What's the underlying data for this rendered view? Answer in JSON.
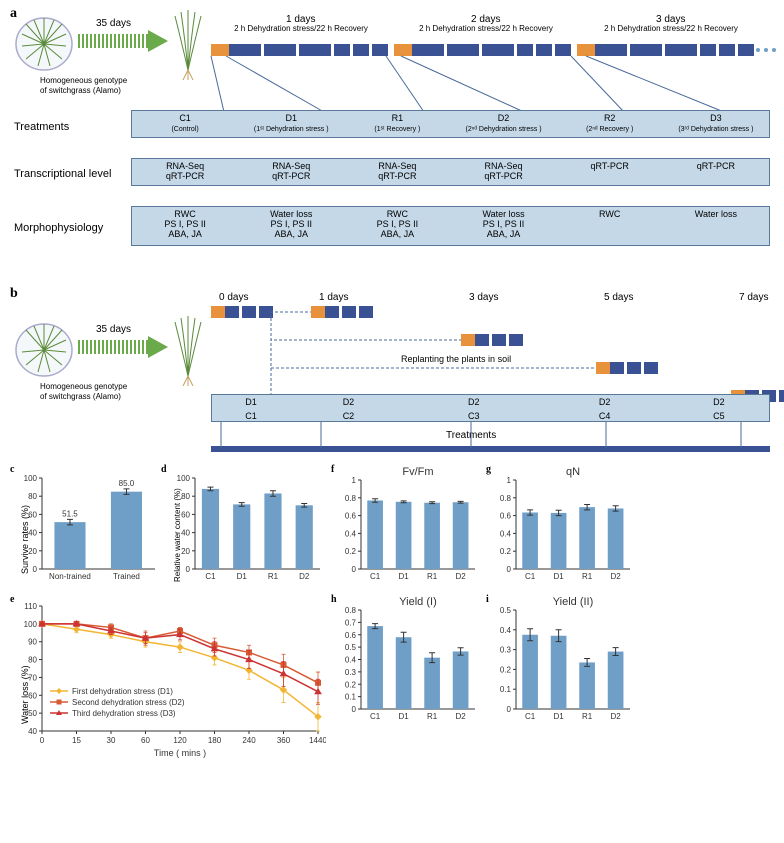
{
  "panelA": {
    "label": "a",
    "arrow_label": "35 days",
    "caption_l1": "Homogeneous genotype",
    "caption_l2": "of switchgrass (Alamo)",
    "days": [
      "1 days",
      "2 days",
      "3 days"
    ],
    "sublabel": "2 h Dehydration stress/22 h Recovery",
    "rows": {
      "treatments": {
        "label": "Treatments",
        "cells": [
          {
            "t": "C1",
            "s": "(Control)"
          },
          {
            "t": "D1",
            "s": "(1ˢᵗ Dehydration stress )"
          },
          {
            "t": "R1",
            "s": "(1ˢᵗ Recovery )"
          },
          {
            "t": "D2",
            "s": "(2ⁿᵈ Dehydration stress )"
          },
          {
            "t": "R2",
            "s": "(2ⁿᵈ Recovery )"
          },
          {
            "t": "D3",
            "s": "(3ʳᵈ Dehydration stress )"
          }
        ]
      },
      "transcriptional": {
        "label": "Transcriptional level",
        "cells": [
          [
            "RNA-Seq",
            "qRT-PCR"
          ],
          [
            "RNA-Seq",
            "qRT-PCR"
          ],
          [
            "RNA-Seq",
            "qRT-PCR"
          ],
          [
            "RNA-Seq",
            "qRT-PCR"
          ],
          [
            "",
            "qRT-PCR"
          ],
          [
            "",
            "qRT-PCR"
          ]
        ]
      },
      "morpho": {
        "label": "Morphophysiology",
        "cells": [
          [
            "RWC",
            "PS I, PS II",
            "ABA, JA"
          ],
          [
            "Water loss",
            "PS I, PS II",
            "ABA, JA"
          ],
          [
            "RWC",
            "PS I, PS II",
            "ABA, JA"
          ],
          [
            "Water loss",
            "PS I, PS II",
            "ABA, JA"
          ],
          [
            "RWC",
            "",
            ""
          ],
          [
            "Water loss",
            "",
            ""
          ]
        ]
      }
    }
  },
  "panelB": {
    "label": "b",
    "arrow_label": "35 days",
    "caption_l1": "Homogeneous genotype",
    "caption_l2": "of switchgrass (Alamo)",
    "days": [
      "0 days",
      "1 days",
      "3 days",
      "5 days",
      "7 days"
    ],
    "replant": "Replanting the plants in soil",
    "row1": [
      "D1",
      "D2",
      "D2",
      "D2",
      "D2"
    ],
    "row2": [
      "C1",
      "C2",
      "C3",
      "C4",
      "C5"
    ],
    "tlabel": "Treatments"
  },
  "c": {
    "label": "c",
    "ylabel": "Survive rates (%)",
    "cats": [
      "Non-trained",
      "Trained"
    ],
    "vals": [
      51.5,
      85.0
    ],
    "errs": [
      3,
      3
    ],
    "showVals": [
      "51.5",
      "85.0"
    ],
    "ymax": 100,
    "yticks": [
      0,
      20,
      40,
      60,
      80,
      100
    ]
  },
  "d": {
    "label": "d",
    "ylabel": "Relative water content (%)",
    "cats": [
      "C1",
      "D1",
      "R1",
      "D2"
    ],
    "vals": [
      88,
      71,
      83,
      70
    ],
    "errs": [
      2,
      2,
      3,
      2
    ],
    "ymax": 100,
    "yticks": [
      0,
      20,
      40,
      60,
      80,
      100
    ]
  },
  "f": {
    "label": "f",
    "title": "Fv/Fm",
    "cats": [
      "C1",
      "D1",
      "R1",
      "D2"
    ],
    "vals": [
      0.77,
      0.755,
      0.745,
      0.75
    ],
    "errs": [
      0.02,
      0.01,
      0.01,
      0.01
    ],
    "ymax": 1,
    "yticks": [
      0,
      0.2,
      0.4,
      0.6,
      0.8,
      1
    ]
  },
  "g": {
    "label": "g",
    "title": "qN",
    "cats": [
      "C1",
      "D1",
      "R1",
      "D2"
    ],
    "vals": [
      0.635,
      0.63,
      0.695,
      0.68
    ],
    "errs": [
      0.03,
      0.03,
      0.03,
      0.03
    ],
    "ymax": 1,
    "yticks": [
      0,
      0.2,
      0.4,
      0.6,
      0.8,
      1
    ]
  },
  "h": {
    "label": "h",
    "title": "Yield (I)",
    "cats": [
      "C1",
      "D1",
      "R1",
      "D2"
    ],
    "vals": [
      0.67,
      0.58,
      0.415,
      0.465
    ],
    "errs": [
      0.02,
      0.04,
      0.04,
      0.03
    ],
    "ymax": 0.8,
    "yticks": [
      0,
      0.1,
      0.2,
      0.3,
      0.4,
      0.5,
      0.6,
      0.7,
      0.8
    ]
  },
  "i": {
    "label": "i",
    "title": "Yield (II)",
    "cats": [
      "C1",
      "D1",
      "R1",
      "D2"
    ],
    "vals": [
      0.375,
      0.37,
      0.235,
      0.29
    ],
    "errs": [
      0.03,
      0.03,
      0.02,
      0.02
    ],
    "ymax": 0.5,
    "yticks": [
      0,
      0.1,
      0.2,
      0.3,
      0.4,
      0.5
    ]
  },
  "e": {
    "label": "e",
    "ylabel": "Water loss (%)",
    "xlabel": "Time ( mins )",
    "xcats": [
      "0",
      "15",
      "30",
      "60",
      "120",
      "180",
      "240",
      "360",
      "1440"
    ],
    "ymax": 110,
    "ymin": 40,
    "yticks": [
      40,
      50,
      60,
      70,
      80,
      90,
      100,
      110
    ],
    "series": [
      {
        "name": "First dehydration stress (D1)",
        "color": "#f2b632",
        "marker": "diamond",
        "y": [
          100,
          97,
          94,
          90,
          87,
          81,
          74,
          63,
          48
        ],
        "err": [
          0,
          2,
          2,
          3,
          3,
          4,
          5,
          7,
          8
        ]
      },
      {
        "name": "Second dehydration stress (D2)",
        "color": "#d85a33",
        "marker": "square",
        "y": [
          100,
          100,
          98,
          92,
          96,
          88,
          84,
          77,
          67
        ],
        "err": [
          0,
          1,
          2,
          4,
          2,
          4,
          4,
          6,
          6
        ]
      },
      {
        "name": "Third dehydration stress (D3)",
        "color": "#cc3333",
        "marker": "triangle",
        "y": [
          100,
          100,
          96,
          92,
          94,
          86,
          80,
          72,
          62
        ],
        "err": [
          0,
          1,
          2,
          3,
          3,
          4,
          5,
          7,
          7
        ]
      }
    ]
  },
  "colors": {
    "bar": "#6f9fc7",
    "orange": "#e8933c",
    "blue": "#3a5294",
    "box": "#c4d8e8"
  }
}
